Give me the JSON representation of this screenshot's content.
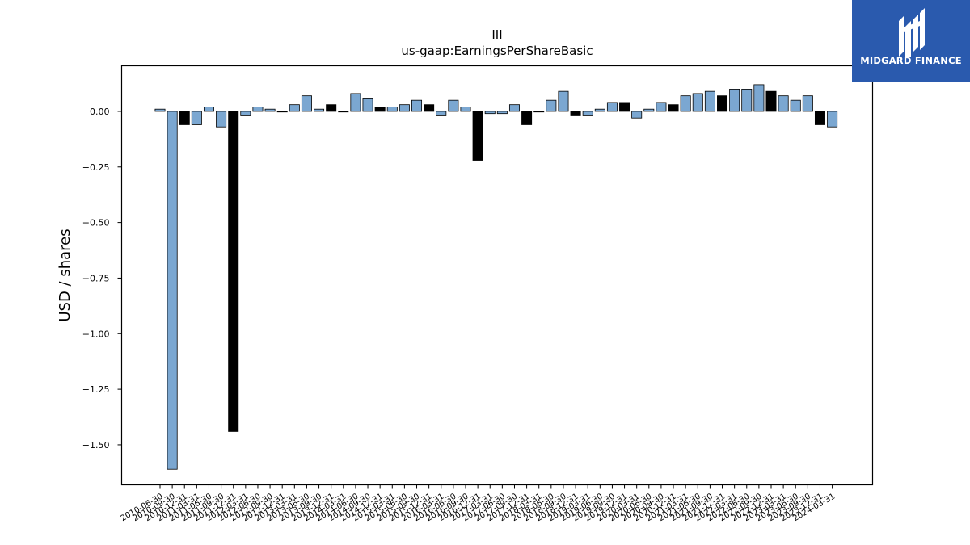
{
  "chart_data": {
    "type": "bar",
    "title": "III",
    "subtitle": "us-gaap:EarningsPerShareBasic",
    "xlabel": "",
    "ylabel": "USD / shares",
    "ylim": [
      -1.68,
      0.205
    ],
    "yticks": [
      0.0,
      -0.25,
      -0.5,
      -0.75,
      -1.0,
      -1.25,
      -1.5
    ],
    "ytick_labels": [
      "0.00",
      "−0.25",
      "−0.50",
      "−0.75",
      "−1.00",
      "−1.25",
      "−1.50"
    ],
    "grid": false,
    "legend": "none",
    "colors": {
      "primary": "#7ba7d1",
      "secondary": "#000000",
      "edge": "#000000"
    },
    "categories": [
      "2010-06-30",
      "2010-09-30",
      "2010-12-31",
      "2011-03-31",
      "2011-06-30",
      "2011-09-30",
      "2011-12-31",
      "2012-03-31",
      "2012-06-30",
      "2012-09-30",
      "2012-12-31",
      "2013-03-31",
      "2013-06-30",
      "2013-09-30",
      "2013-12-31",
      "2014-03-31",
      "2014-06-30",
      "2014-09-30",
      "2014-12-31",
      "2015-03-31",
      "2015-06-30",
      "2015-09-30",
      "2015-12-31",
      "2016-03-31",
      "2016-06-30",
      "2016-09-30",
      "2016-12-31",
      "2017-03-31",
      "2017-06-30",
      "2017-09-30",
      "2017-12-31",
      "2018-03-31",
      "2018-06-30",
      "2018-09-30",
      "2018-12-31",
      "2019-03-31",
      "2019-06-30",
      "2019-09-30",
      "2019-12-31",
      "2020-03-31",
      "2020-06-30",
      "2020-09-30",
      "2020-12-31",
      "2021-03-31",
      "2021-06-30",
      "2021-09-30",
      "2021-12-31",
      "2022-03-31",
      "2022-06-30",
      "2022-09-30",
      "2022-12-31",
      "2023-03-31",
      "2023-06-30",
      "2023-09-30",
      "2023-12-31",
      "2024-03-31"
    ],
    "values": [
      0.01,
      -1.61,
      -0.06,
      -0.06,
      0.02,
      -0.07,
      -1.44,
      -0.02,
      0.02,
      0.01,
      0.0,
      0.03,
      0.07,
      0.01,
      0.03,
      0.0,
      0.08,
      0.06,
      0.02,
      0.02,
      0.03,
      0.05,
      0.03,
      -0.02,
      0.05,
      0.02,
      -0.22,
      -0.01,
      -0.01,
      0.03,
      -0.06,
      0.0,
      0.05,
      0.09,
      -0.02,
      -0.02,
      0.01,
      0.04,
      0.04,
      -0.03,
      0.01,
      0.04,
      0.03,
      0.07,
      0.08,
      0.09,
      0.07,
      0.1,
      0.1,
      0.12,
      0.09,
      0.07,
      0.05,
      0.07,
      -0.06,
      -0.07
    ],
    "highlight": [
      false,
      false,
      true,
      false,
      false,
      false,
      true,
      false,
      false,
      false,
      false,
      false,
      false,
      false,
      true,
      false,
      false,
      false,
      true,
      false,
      false,
      false,
      true,
      false,
      false,
      false,
      true,
      false,
      false,
      false,
      true,
      false,
      false,
      false,
      true,
      false,
      false,
      false,
      true,
      false,
      false,
      false,
      true,
      false,
      false,
      false,
      true,
      false,
      false,
      false,
      true,
      false,
      false,
      false,
      true,
      false
    ]
  },
  "logo": {
    "text": "MIDGARD FINANCE"
  }
}
